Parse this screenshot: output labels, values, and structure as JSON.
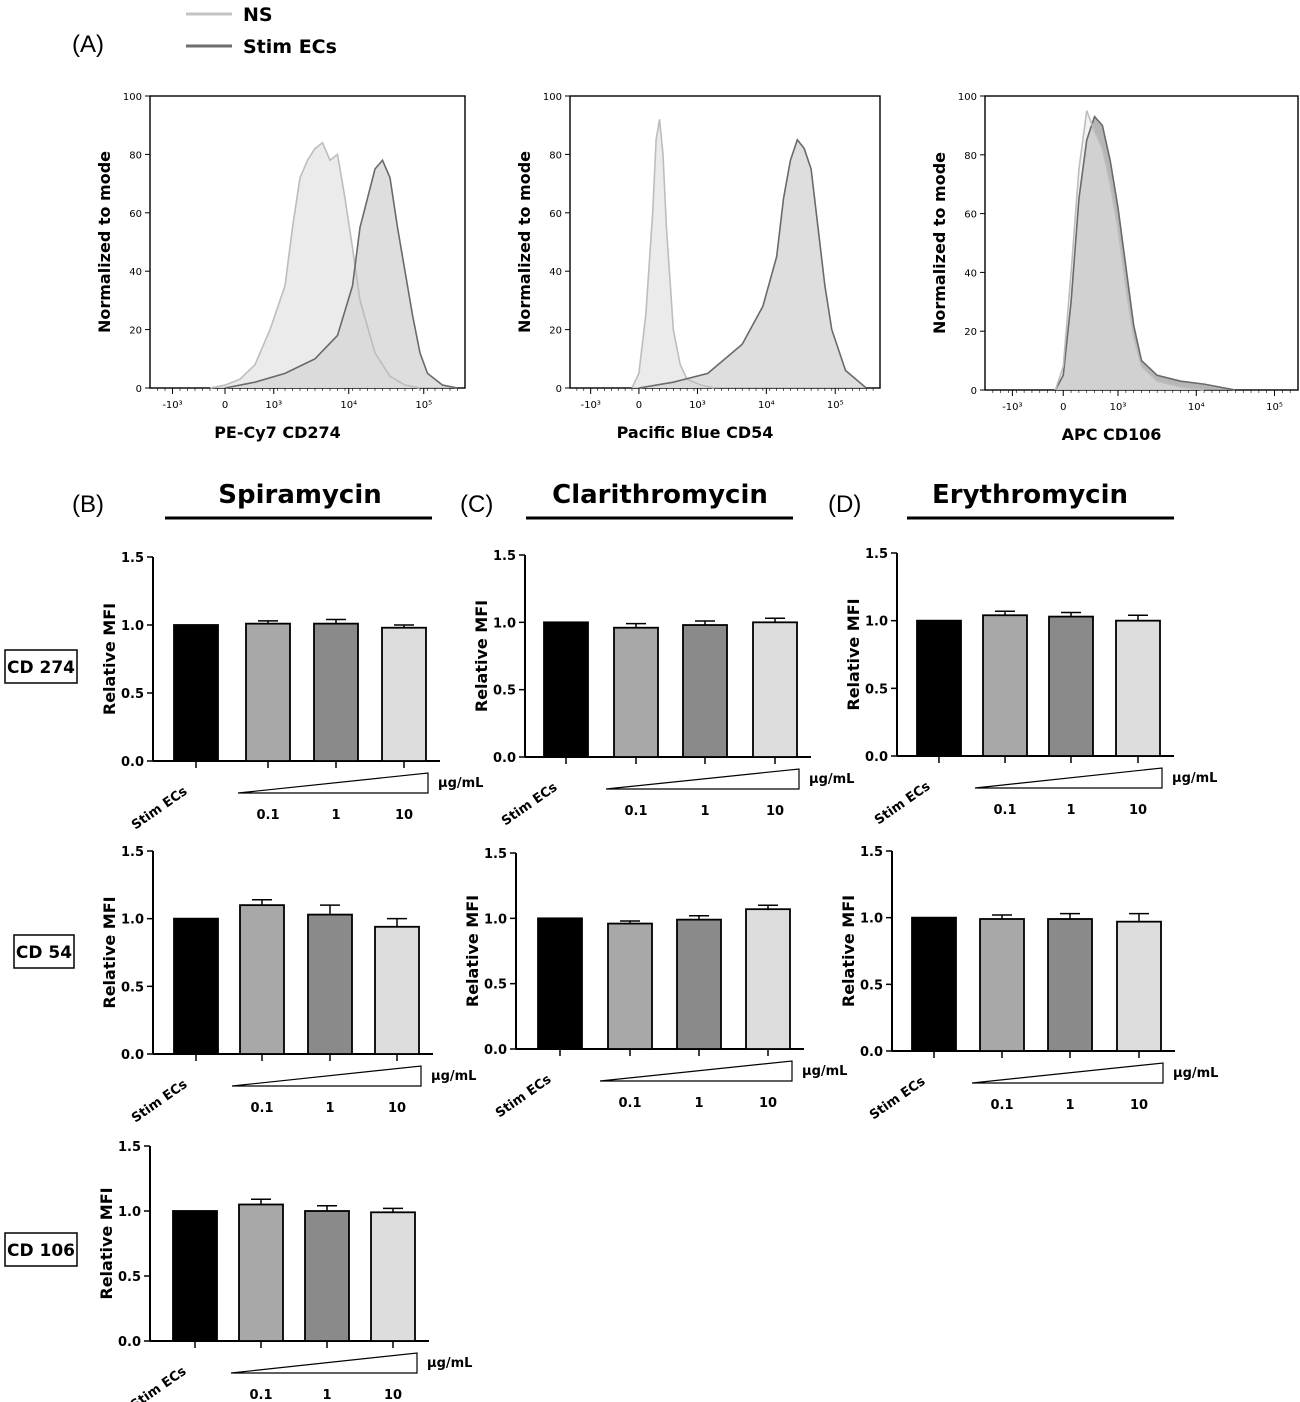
{
  "panel_labels": {
    "a": "(A)",
    "b": "(B)",
    "c": "(C)",
    "d": "(D)"
  },
  "legend": [
    {
      "label": "NS",
      "color": "#c4c4c4"
    },
    {
      "label": "Stim ECs",
      "color": "#6e6e6e"
    }
  ],
  "drug_titles": [
    "Spiramycin",
    "Clarithromycin",
    "Erythromycin"
  ],
  "row_labels": [
    "CD 274",
    "CD 54",
    "CD 106"
  ],
  "colors": {
    "ns_fill": "#e8e8e8",
    "ns_line": "#bdbdbd",
    "stim_fill": "#d8d8d8",
    "stim_line": "#6a6a6a",
    "stim_fill_cd106": "#a9a9a9",
    "bar_stim": "#000000",
    "bar_01": "#a8a8a8",
    "bar_1": "#8a8a8a",
    "bar_10": "#dddddd"
  },
  "chart_data": [
    {
      "type": "area",
      "id": "hist-cd274",
      "xlabel": "PE-Cy7 CD274",
      "ylabel": "Normalized to mode",
      "y_ticks": [
        "0",
        "20",
        "40",
        "60",
        "80",
        "100"
      ],
      "ylim": [
        0,
        100
      ],
      "x_ticks": [
        "-10³",
        "0",
        "10³",
        "10⁴",
        "10⁵"
      ],
      "series": [
        {
          "name": "NS",
          "x": [
            -0.2,
            0.0,
            0.2,
            0.4,
            0.6,
            0.8,
            0.9,
            1.0,
            1.1,
            1.2,
            1.3,
            1.4,
            1.5,
            1.6,
            1.7,
            1.8,
            2.0,
            2.2,
            2.4,
            2.6
          ],
          "y": [
            0,
            1,
            3,
            8,
            20,
            35,
            55,
            72,
            78,
            82,
            84,
            78,
            80,
            65,
            48,
            30,
            12,
            4,
            1,
            0
          ]
        },
        {
          "name": "Stim ECs",
          "x": [
            0.0,
            0.4,
            0.8,
            1.2,
            1.5,
            1.7,
            1.8,
            1.9,
            2.0,
            2.1,
            2.2,
            2.3,
            2.4,
            2.5,
            2.6,
            2.7,
            2.9,
            3.1
          ],
          "y": [
            0,
            2,
            5,
            10,
            18,
            35,
            55,
            65,
            75,
            78,
            72,
            55,
            40,
            25,
            12,
            5,
            1,
            0
          ]
        }
      ]
    },
    {
      "type": "area",
      "id": "hist-cd54",
      "xlabel": "Pacific Blue CD54",
      "ylabel": "Normalized to mode",
      "y_ticks": [
        "0",
        "20",
        "40",
        "60",
        "80",
        "100"
      ],
      "ylim": [
        0,
        100
      ],
      "x_ticks": [
        "-10³",
        "0",
        "10³",
        "10⁴",
        "10⁵"
      ],
      "series": [
        {
          "name": "NS",
          "x": [
            -0.1,
            0.0,
            0.1,
            0.2,
            0.25,
            0.3,
            0.35,
            0.4,
            0.5,
            0.6,
            0.7,
            0.9,
            1.1
          ],
          "y": [
            0,
            5,
            25,
            60,
            85,
            92,
            80,
            55,
            20,
            8,
            3,
            1,
            0
          ]
        },
        {
          "name": "Stim ECs",
          "x": [
            0.0,
            0.5,
            1.0,
            1.5,
            1.8,
            2.0,
            2.1,
            2.2,
            2.3,
            2.4,
            2.5,
            2.6,
            2.7,
            2.8,
            3.0,
            3.3
          ],
          "y": [
            0,
            2,
            5,
            15,
            28,
            45,
            65,
            78,
            85,
            82,
            75,
            55,
            35,
            20,
            6,
            0
          ]
        }
      ]
    },
    {
      "type": "area",
      "id": "hist-cd106",
      "xlabel": "APC CD106",
      "ylabel": "Normalized to mode",
      "y_ticks": [
        "0",
        "20",
        "40",
        "60",
        "80",
        "100"
      ],
      "ylim": [
        0,
        100
      ],
      "x_ticks": [
        "-10³",
        "0",
        "10³",
        "10⁴",
        "10⁵"
      ],
      "series": [
        {
          "name": "NS",
          "x": [
            -0.1,
            0.0,
            0.1,
            0.2,
            0.3,
            0.4,
            0.5,
            0.6,
            0.7,
            0.8,
            0.9,
            1.0,
            1.2,
            1.5,
            1.8
          ],
          "y": [
            0,
            8,
            40,
            75,
            95,
            88,
            82,
            70,
            55,
            35,
            18,
            8,
            3,
            1,
            0
          ]
        },
        {
          "name": "Stim ECs",
          "x": [
            -0.1,
            0.0,
            0.1,
            0.2,
            0.3,
            0.4,
            0.5,
            0.6,
            0.7,
            0.8,
            0.9,
            1.0,
            1.2,
            1.5,
            1.8,
            2.2
          ],
          "y": [
            0,
            5,
            30,
            65,
            85,
            93,
            90,
            78,
            62,
            42,
            22,
            10,
            5,
            3,
            2,
            0
          ]
        }
      ]
    },
    {
      "type": "bar",
      "id": "bar-spira-cd274",
      "ylabel": "Relative MFI",
      "ylim": [
        0,
        1.5
      ],
      "y_ticks": [
        "0.0",
        "0.5",
        "1.0",
        "1.5"
      ],
      "categories": [
        "Stim ECs",
        "0.1",
        "1",
        "10"
      ],
      "unit": "μg/mL",
      "values": [
        1.0,
        1.01,
        1.01,
        0.98
      ],
      "errors": [
        0,
        0.02,
        0.03,
        0.02
      ]
    },
    {
      "type": "bar",
      "id": "bar-clari-cd274",
      "ylabel": "Relative MFI",
      "ylim": [
        0,
        1.5
      ],
      "y_ticks": [
        "0.0",
        "0.5",
        "1.0",
        "1.5"
      ],
      "categories": [
        "Stim ECs",
        "0.1",
        "1",
        "10"
      ],
      "unit": "μg/mL",
      "values": [
        1.0,
        0.96,
        0.98,
        1.0
      ],
      "errors": [
        0,
        0.03,
        0.03,
        0.03
      ]
    },
    {
      "type": "bar",
      "id": "bar-ery-cd274",
      "ylabel": "Relative MFI",
      "ylim": [
        0,
        1.5
      ],
      "y_ticks": [
        "0.0",
        "0.5",
        "1.0",
        "1.5"
      ],
      "categories": [
        "Stim ECs",
        "0.1",
        "1",
        "10"
      ],
      "unit": "μg/mL",
      "values": [
        1.0,
        1.04,
        1.03,
        1.0
      ],
      "errors": [
        0,
        0.03,
        0.03,
        0.04
      ]
    },
    {
      "type": "bar",
      "id": "bar-spira-cd54",
      "ylabel": "Relative MFI",
      "ylim": [
        0,
        1.5
      ],
      "y_ticks": [
        "0.0",
        "0.5",
        "1.0",
        "1.5"
      ],
      "categories": [
        "Stim ECs",
        "0.1",
        "1",
        "10"
      ],
      "unit": "μg/mL",
      "values": [
        1.0,
        1.1,
        1.03,
        0.94
      ],
      "errors": [
        0,
        0.04,
        0.07,
        0.06
      ]
    },
    {
      "type": "bar",
      "id": "bar-clari-cd54",
      "ylabel": "Relative MFI",
      "ylim": [
        0,
        1.5
      ],
      "y_ticks": [
        "0.0",
        "0.5",
        "1.0",
        "1.5"
      ],
      "categories": [
        "Stim ECs",
        "0.1",
        "1",
        "10"
      ],
      "unit": "μg/mL",
      "values": [
        1.0,
        0.96,
        0.99,
        1.07
      ],
      "errors": [
        0,
        0.02,
        0.03,
        0.03
      ]
    },
    {
      "type": "bar",
      "id": "bar-ery-cd54",
      "ylabel": "Relative MFI",
      "ylim": [
        0,
        1.5
      ],
      "y_ticks": [
        "0.0",
        "0.5",
        "1.0",
        "1.5"
      ],
      "categories": [
        "Stim ECs",
        "0.1",
        "1",
        "10"
      ],
      "unit": "μg/mL",
      "values": [
        1.0,
        0.99,
        0.99,
        0.97
      ],
      "errors": [
        0,
        0.03,
        0.04,
        0.06
      ]
    },
    {
      "type": "bar",
      "id": "bar-spira-cd106",
      "ylabel": "Relative MFI",
      "ylim": [
        0,
        1.5
      ],
      "y_ticks": [
        "0.0",
        "0.5",
        "1.0",
        "1.5"
      ],
      "categories": [
        "Stim ECs",
        "0.1",
        "1",
        "10"
      ],
      "unit": "μg/mL",
      "values": [
        1.0,
        1.05,
        1.0,
        0.99
      ],
      "errors": [
        0,
        0.04,
        0.04,
        0.03
      ]
    }
  ]
}
